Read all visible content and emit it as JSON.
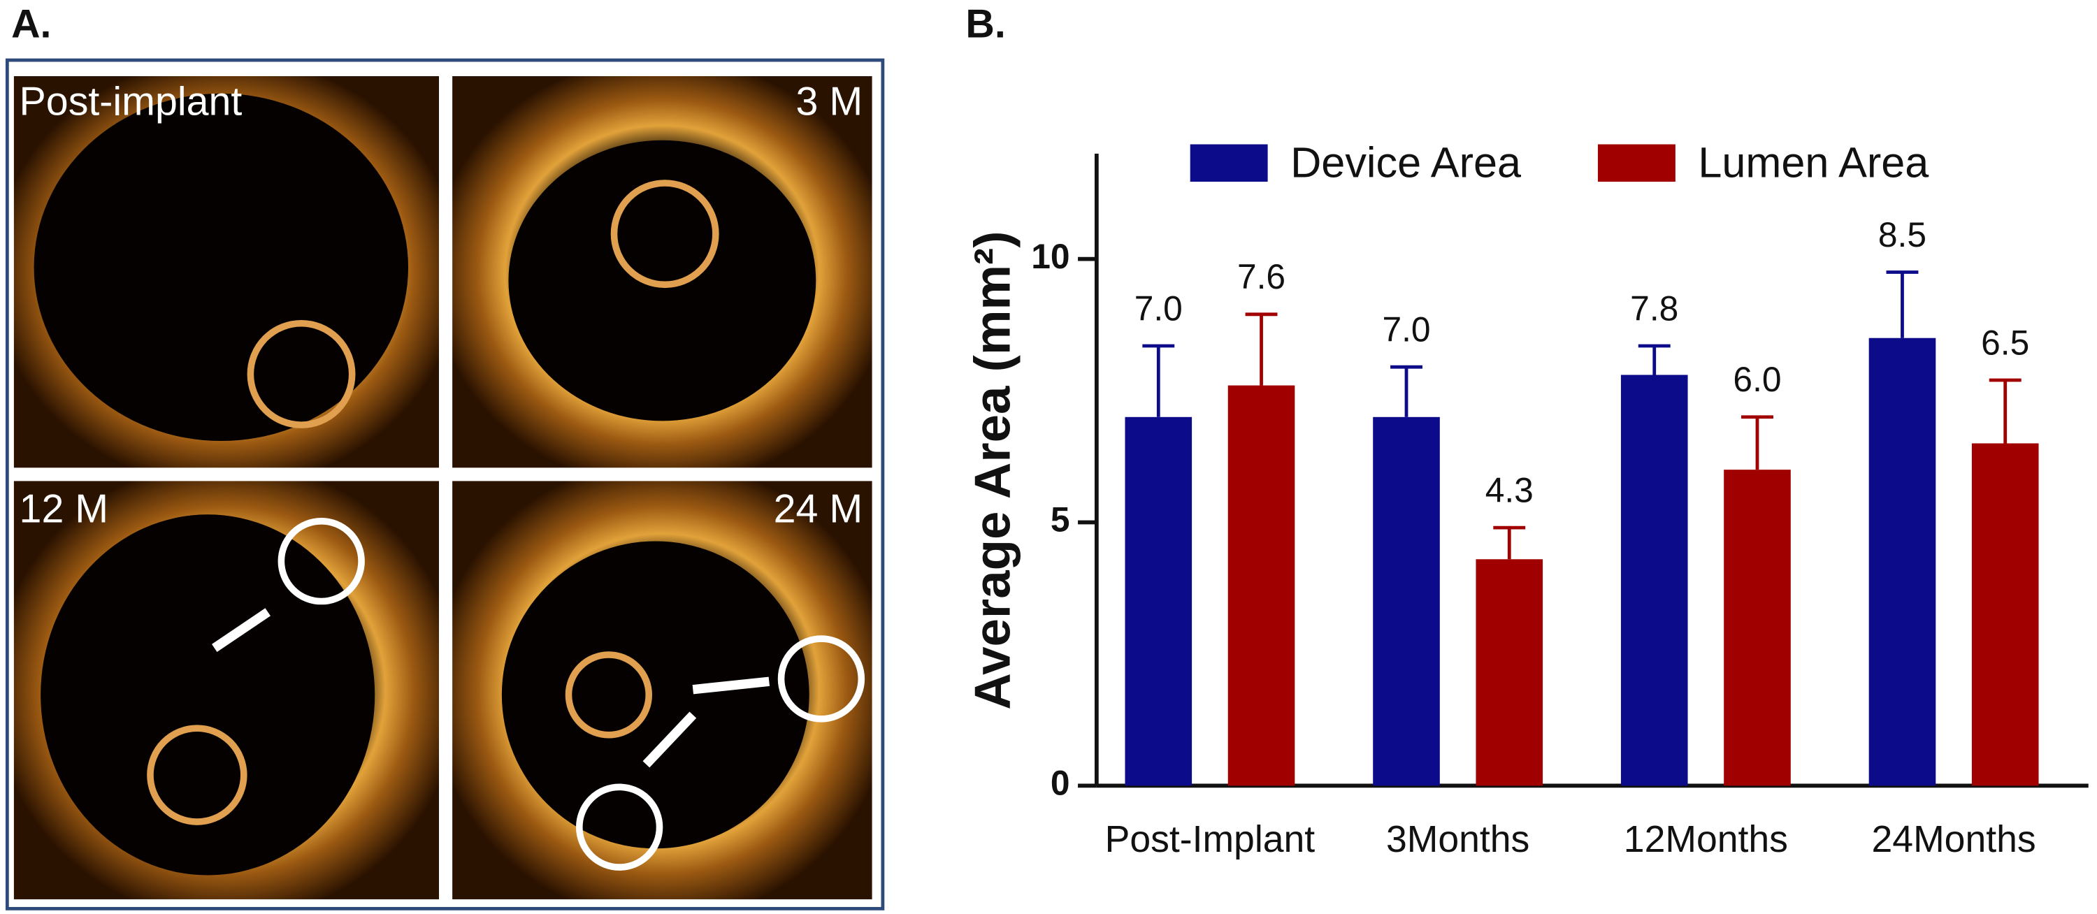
{
  "panel_a": {
    "label": "A.",
    "images": [
      {
        "label": "Post-implant"
      },
      {
        "label": "3 M"
      },
      {
        "label": "12 M"
      },
      {
        "label": "24 M"
      }
    ]
  },
  "chart_data": {
    "type": "bar",
    "panel_label": "B.",
    "y_label": "Average Area (mm²)",
    "categories": [
      "Post-Implant",
      "3Months",
      "12Months",
      "24Months"
    ],
    "series": [
      {
        "name": "Device Area",
        "color": "#0c0c8a",
        "values": [
          7.0,
          7.0,
          7.8,
          8.5
        ],
        "value_labels": [
          "7.0",
          "7.0",
          "7.8",
          "8.5"
        ],
        "errors": [
          1.35,
          0.95,
          0.55,
          1.25
        ]
      },
      {
        "name": "Lumen Area",
        "color": "#a00000",
        "values": [
          7.6,
          4.3,
          6.0,
          6.5
        ],
        "value_labels": [
          "7.6",
          "4.3",
          "6.0",
          "6.5"
        ],
        "errors": [
          1.35,
          0.6,
          1.0,
          1.2
        ]
      }
    ],
    "ylim": [
      0,
      12
    ],
    "yticks": [
      0,
      5,
      10
    ],
    "legend": "top"
  }
}
